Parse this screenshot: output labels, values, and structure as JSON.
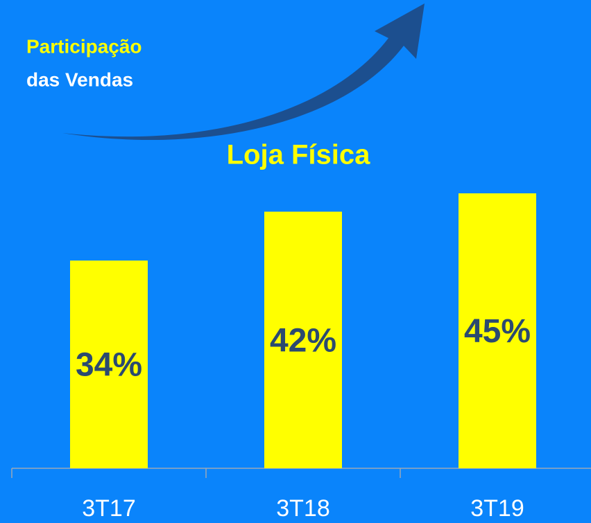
{
  "chart_data": {
    "type": "bar",
    "title": "Loja Física",
    "annotation": [
      "Participação",
      "das Vendas"
    ],
    "categories": [
      "3T17",
      "3T18",
      "3T19"
    ],
    "values": [
      34,
      42,
      45
    ],
    "value_labels": [
      "34%",
      "42%",
      "45%"
    ],
    "color": "#ffff00"
  }
}
